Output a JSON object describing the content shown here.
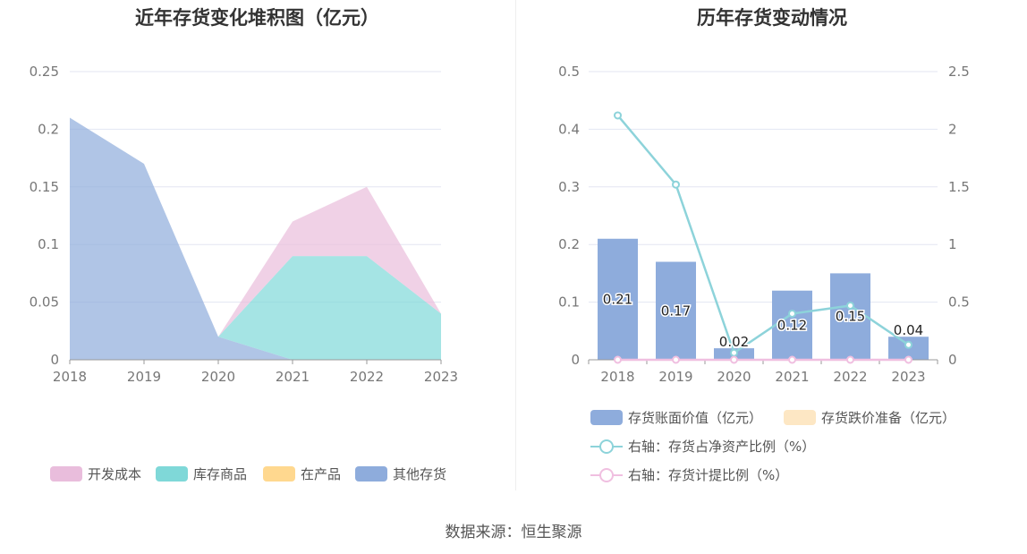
{
  "source": "数据来源：恒生聚源",
  "charts": {
    "left": {
      "title": "近年存货变化堆积图（亿元）",
      "legend": [
        {
          "name": "开发成本",
          "color": "#e9bddc"
        },
        {
          "name": "库存商品",
          "color": "#7fd8d8"
        },
        {
          "name": "在产品",
          "color": "#ffd88f"
        },
        {
          "name": "其他存货",
          "color": "#8eacdc"
        }
      ]
    },
    "right": {
      "title": "历年存货变动情况",
      "legend": [
        {
          "name": "存货账面价值（亿元）",
          "color": "#8eacdc"
        },
        {
          "name": "存货跌价准备（亿元）",
          "color": "#fde7c4"
        },
        {
          "name": "右轴：存货占净资产比例（%）",
          "color": "#8dd3da"
        },
        {
          "name": "右轴：存货计提比例（%）",
          "color": "#f0bfe0"
        }
      ]
    }
  },
  "chart_data": [
    {
      "type": "area",
      "stacked": true,
      "title": "近年存货变化堆积图（亿元）",
      "x": [
        "2018",
        "2019",
        "2020",
        "2021",
        "2022",
        "2023"
      ],
      "ylim": [
        0,
        0.25
      ],
      "yticks": [
        "0",
        "0.05",
        "0.1",
        "0.15",
        "0.2",
        "0.25"
      ],
      "grid": true,
      "legend_position": "bottom",
      "series": [
        {
          "name": "其他存货",
          "color": "#8eacdc",
          "values": [
            0.21,
            0.17,
            0.02,
            0,
            0,
            0
          ]
        },
        {
          "name": "在产品",
          "color": "#ffd88f",
          "values": [
            0,
            0,
            0,
            0,
            0,
            0
          ]
        },
        {
          "name": "库存商品",
          "color": "#7fd8d8",
          "values": [
            0,
            0,
            0,
            0.09,
            0.09,
            0.04
          ]
        },
        {
          "name": "开发成本",
          "color": "#e9bddc",
          "values": [
            0,
            0,
            0,
            0.03,
            0.06,
            0
          ]
        }
      ]
    },
    {
      "type": "bar",
      "title": "历年存货变动情况",
      "categories": [
        "2018",
        "2019",
        "2020",
        "2021",
        "2022",
        "2023"
      ],
      "ylim": [
        0,
        0.5
      ],
      "yticks": [
        "0",
        "0.1",
        "0.2",
        "0.3",
        "0.4",
        "0.5"
      ],
      "y2lim": [
        0,
        2.5
      ],
      "y2ticks": [
        "0",
        "0.5",
        "1",
        "1.5",
        "2",
        "2.5"
      ],
      "grid": true,
      "legend_position": "bottom",
      "series": [
        {
          "name": "存货账面价值（亿元）",
          "type": "bar",
          "axis": "left",
          "color": "#8eacdc",
          "values": [
            0.21,
            0.17,
            0.02,
            0.12,
            0.15,
            0.04
          ],
          "labels": [
            "0.21",
            "0.17",
            "0.02",
            "0.12",
            "0.15",
            "0.04"
          ]
        },
        {
          "name": "存货跌价准备（亿元）",
          "type": "bar",
          "axis": "left",
          "color": "#fde7c4",
          "values": [
            0,
            0,
            0,
            0,
            0,
            0
          ]
        },
        {
          "name": "右轴：存货占净资产比例（%）",
          "type": "line",
          "axis": "right",
          "color": "#8dd3da",
          "values": [
            2.12,
            1.52,
            0.06,
            0.4,
            0.47,
            0.13
          ]
        },
        {
          "name": "右轴：存货计提比例（%）",
          "type": "line",
          "axis": "right",
          "color": "#f0bfe0",
          "values": [
            0,
            0,
            0,
            0,
            0,
            0
          ]
        }
      ]
    }
  ]
}
